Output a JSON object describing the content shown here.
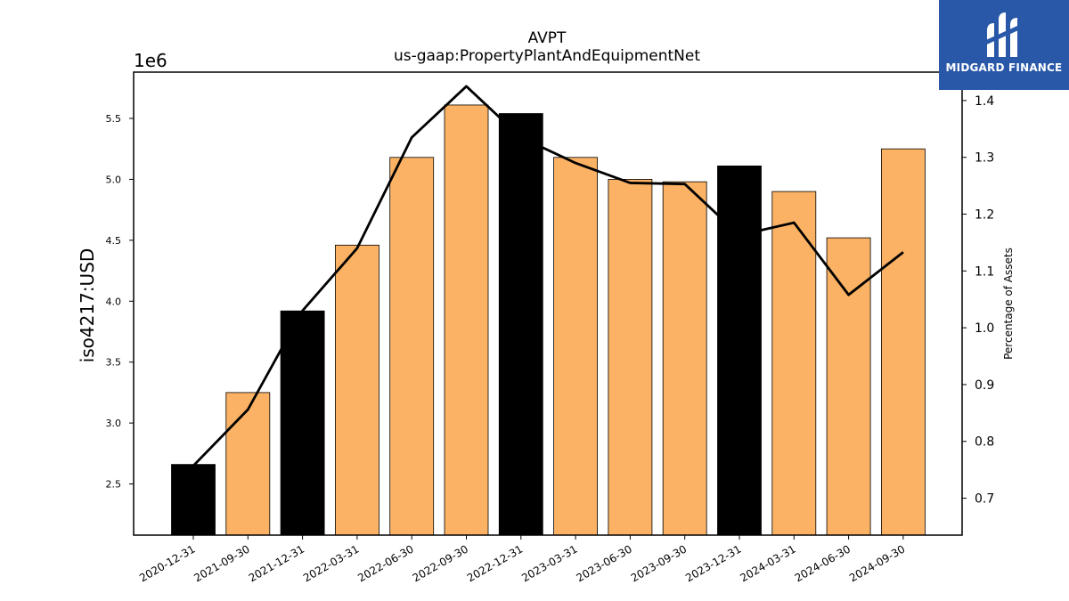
{
  "chart_data": {
    "type": "bar+line",
    "title": "AVPT",
    "subtitle": "us-gaap:PropertyPlantAndEquipmentNet",
    "ylabel": "iso4217:USD",
    "y_offset_label": "1e6",
    "y2label": "Percentage of Assets",
    "categories": [
      "2020-12-31",
      "2021-09-30",
      "2021-12-31",
      "2022-03-31",
      "2022-06-30",
      "2022-09-30",
      "2022-12-31",
      "2023-03-31",
      "2023-06-30",
      "2023-09-30",
      "2023-12-31",
      "2024-03-31",
      "2024-06-30",
      "2024-09-30"
    ],
    "bar_values": [
      2.66,
      3.25,
      3.92,
      4.46,
      5.18,
      5.61,
      5.54,
      5.18,
      5.0,
      4.98,
      5.11,
      4.9,
      4.52,
      5.25
    ],
    "bar_colors": [
      "#000000",
      "#fbb264",
      "#000000",
      "#fbb264",
      "#fbb264",
      "#fbb264",
      "#000000",
      "#fbb264",
      "#fbb264",
      "#fbb264",
      "#000000",
      "#fbb264",
      "#fbb264",
      "#fbb264"
    ],
    "line_values": [
      0.757,
      0.856,
      1.03,
      1.14,
      1.335,
      1.425,
      1.335,
      1.29,
      1.255,
      1.253,
      1.163,
      1.185,
      1.058,
      1.133
    ],
    "ylim": [
      2.08,
      5.88
    ],
    "y_ticks": [
      "2.5",
      "3.0",
      "3.5",
      "4.0",
      "4.5",
      "5.0",
      "5.5"
    ],
    "y2lim": [
      0.635,
      1.45
    ],
    "y2_ticks": [
      "0.7",
      "0.8",
      "0.9",
      "1.0",
      "1.1",
      "1.2",
      "1.3",
      "1.4"
    ],
    "grid": false,
    "line_color": "#000000",
    "bar_edge_color": "#000000"
  },
  "logo": {
    "text": "MIDGARD FINANCE",
    "background": "#2a58a8"
  }
}
